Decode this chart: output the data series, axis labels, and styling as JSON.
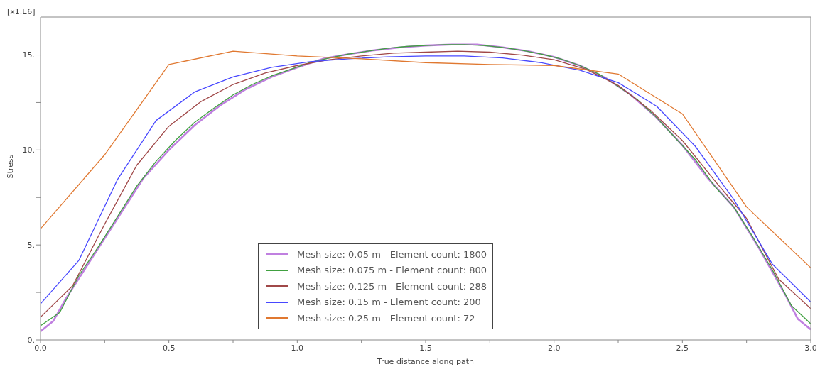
{
  "chart_data": {
    "type": "line",
    "xlabel": "True distance along path",
    "ylabel": "Stress",
    "annotations": [
      "[x1.E6]"
    ],
    "xlim": [
      0,
      3.0
    ],
    "ylim": [
      0,
      17
    ],
    "xticks": [
      {
        "value": 0,
        "label": "0.0"
      },
      {
        "value": 0.25,
        "label": null
      },
      {
        "value": 0.5,
        "label": "0.5"
      },
      {
        "value": 0.75,
        "label": null
      },
      {
        "value": 1,
        "label": "1.0"
      },
      {
        "value": 1.25,
        "label": null
      },
      {
        "value": 1.5,
        "label": "1.5"
      },
      {
        "value": 1.75,
        "label": null
      },
      {
        "value": 2,
        "label": "2.0"
      },
      {
        "value": 2.25,
        "label": null
      },
      {
        "value": 2.5,
        "label": "2.5"
      },
      {
        "value": 2.75,
        "label": null
      },
      {
        "value": 3,
        "label": "3.0"
      }
    ],
    "yticks": [
      {
        "value": 0,
        "label": "0."
      },
      {
        "value": 2.5,
        "label": null
      },
      {
        "value": 5,
        "label": "5."
      },
      {
        "value": 7.5,
        "label": null
      },
      {
        "value": 10,
        "label": "10."
      },
      {
        "value": 12.5,
        "label": null
      },
      {
        "value": 15,
        "label": "15."
      }
    ],
    "grid": false,
    "legend": "bottom",
    "marker": "none",
    "line_style": "solid",
    "series": [
      {
        "name": "Mesh size: 0.05 m - Element count: 1800",
        "color": "#c080e0",
        "x": [
          0,
          0.05,
          0.1,
          0.2,
          0.3,
          0.4,
          0.5,
          0.6,
          0.7,
          0.8,
          0.9,
          1.0,
          1.1,
          1.2,
          1.3,
          1.4,
          1.5,
          1.6,
          1.7,
          1.8,
          1.9,
          2.0,
          2.1,
          2.2,
          2.3,
          2.4,
          2.5,
          2.6,
          2.7,
          2.8,
          2.9,
          2.95,
          3.0
        ],
        "values": [
          0.45,
          1.0,
          2.2,
          4.3,
          6.4,
          8.5,
          10.0,
          11.3,
          12.35,
          13.2,
          13.85,
          14.35,
          14.8,
          15.05,
          15.25,
          15.4,
          15.5,
          15.55,
          15.55,
          15.4,
          15.2,
          14.9,
          14.45,
          13.8,
          12.9,
          11.7,
          10.25,
          8.5,
          7.0,
          4.8,
          2.4,
          1.1,
          0.55
        ]
      },
      {
        "name": "Mesh size: 0.075 m - Element count: 800",
        "color": "#40a040",
        "x": [
          0,
          0.075,
          0.15,
          0.225,
          0.3,
          0.375,
          0.45,
          0.525,
          0.6,
          0.675,
          0.75,
          0.825,
          0.9,
          0.975,
          1.05,
          1.125,
          1.2,
          1.275,
          1.35,
          1.425,
          1.5,
          1.575,
          1.65,
          1.725,
          1.8,
          1.875,
          1.95,
          2.025,
          2.1,
          2.175,
          2.25,
          2.325,
          2.4,
          2.475,
          2.55,
          2.625,
          2.7,
          2.775,
          2.85,
          2.925,
          3.0
        ],
        "values": [
          0.75,
          1.45,
          3.4,
          4.9,
          6.5,
          8.1,
          9.4,
          10.5,
          11.45,
          12.2,
          12.9,
          13.45,
          13.9,
          14.25,
          14.6,
          14.85,
          15.05,
          15.2,
          15.35,
          15.45,
          15.5,
          15.55,
          15.55,
          15.5,
          15.4,
          15.25,
          15.05,
          14.8,
          14.45,
          14.0,
          13.35,
          12.65,
          11.7,
          10.6,
          9.5,
          8.1,
          7.0,
          5.4,
          3.7,
          1.8,
          0.85
        ]
      },
      {
        "name": "Mesh size: 0.125 m - Element count: 288",
        "color": "#a04848",
        "x": [
          0,
          0.125,
          0.25,
          0.375,
          0.5,
          0.625,
          0.75,
          0.875,
          1.0,
          1.125,
          1.25,
          1.375,
          1.5,
          1.625,
          1.75,
          1.875,
          2.0,
          2.125,
          2.25,
          2.375,
          2.5,
          2.625,
          2.75,
          2.875,
          3.0
        ],
        "values": [
          1.2,
          2.85,
          6.1,
          9.2,
          11.25,
          12.55,
          13.45,
          14.05,
          14.45,
          14.75,
          14.95,
          15.1,
          15.15,
          15.2,
          15.15,
          15.0,
          14.75,
          14.25,
          13.4,
          12.1,
          10.5,
          8.4,
          6.4,
          3.2,
          1.65
        ]
      },
      {
        "name": "Mesh size: 0.15 m - Element count: 200",
        "color": "#4848ff",
        "x": [
          0,
          0.15,
          0.3,
          0.45,
          0.6,
          0.75,
          0.9,
          1.05,
          1.2,
          1.35,
          1.5,
          1.65,
          1.8,
          1.95,
          2.1,
          2.25,
          2.4,
          2.55,
          2.7,
          2.85,
          3.0
        ],
        "values": [
          1.9,
          4.2,
          8.45,
          11.55,
          13.05,
          13.85,
          14.35,
          14.65,
          14.8,
          14.9,
          14.95,
          14.95,
          14.85,
          14.6,
          14.2,
          13.55,
          12.3,
          10.2,
          7.4,
          4.0,
          2.0
        ]
      },
      {
        "name": "Mesh size: 0.25 m - Element count: 72",
        "color": "#e07830",
        "x": [
          0,
          0.25,
          0.5,
          0.75,
          1.0,
          1.25,
          1.5,
          1.75,
          2.0,
          2.25,
          2.5,
          2.75,
          3.0
        ],
        "values": [
          5.85,
          9.75,
          14.5,
          15.2,
          14.95,
          14.8,
          14.6,
          14.5,
          14.45,
          14.0,
          11.9,
          7.0,
          3.8
        ]
      }
    ]
  }
}
